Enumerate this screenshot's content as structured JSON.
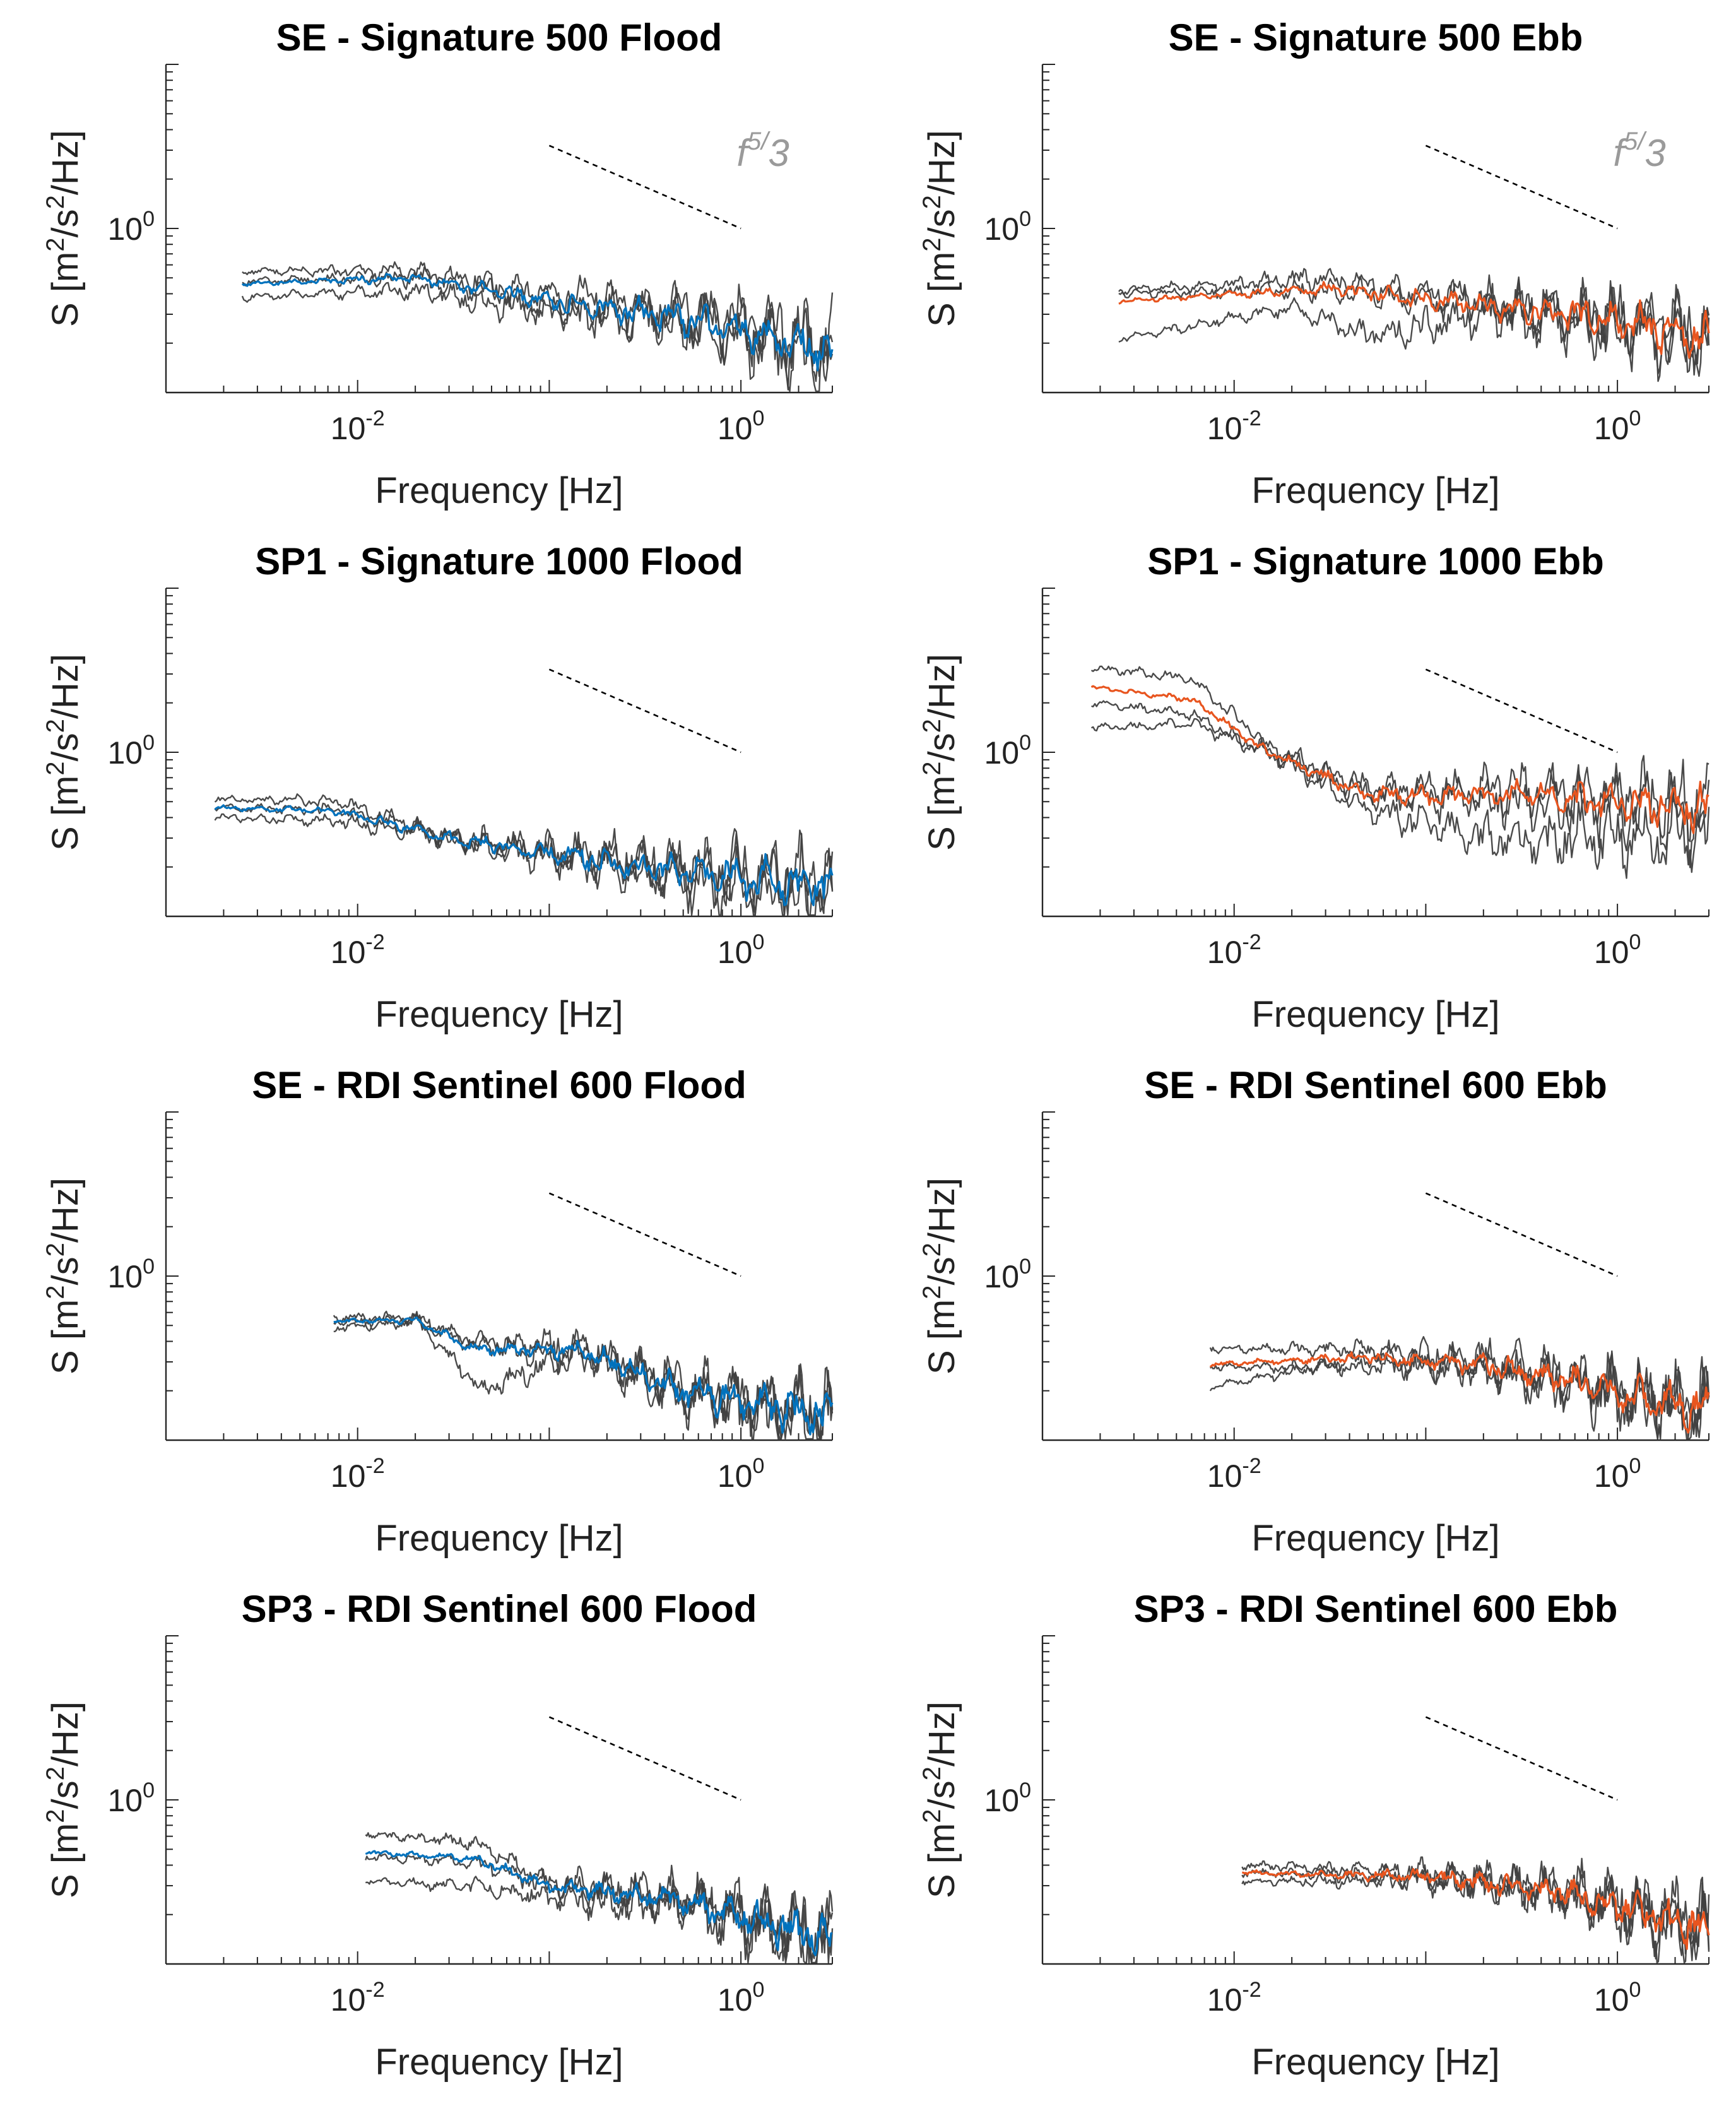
{
  "figure": {
    "common": {
      "xlabel": "Frequency [Hz]",
      "ylabel_parts": [
        "S [m",
        "2",
        "/s",
        "2",
        "/Hz]"
      ],
      "xtick_base": "10",
      "xtick_exponents": [
        "-2",
        "0"
      ],
      "xtick_values": [
        0.01,
        1
      ],
      "ytick_base": "10",
      "ytick_exponents": [
        "0"
      ],
      "ytick_values": [
        1
      ],
      "xlim": [
        0.001,
        3
      ],
      "ylim": [
        0.1,
        10
      ],
      "slope_annotation": {
        "base": "f",
        "exponent": "5/",
        "tail": "3"
      },
      "colors": {
        "flood": "#0072bd",
        "ebb": "#e8551f",
        "gray": "#404040",
        "slope": "#000000"
      }
    }
  },
  "chart_data": [
    {
      "type": "line",
      "title": "SE - Signature 500 Flood",
      "xlabel": "Frequency [Hz]",
      "ylabel": "S [m2/s2/Hz]",
      "xlim": [
        0.001,
        3
      ],
      "ylim": [
        0.1,
        10
      ],
      "color_key": "flood",
      "show_annotation": true,
      "f_start": 0.0025,
      "f_end": 3,
      "seed": 11,
      "series": [
        {
          "name": "gray-1",
          "style": "gray",
          "values_at": [
            [
              0.0025,
              0.55
            ],
            [
              0.02,
              0.55
            ],
            [
              0.1,
              0.4
            ],
            [
              0.5,
              0.32
            ],
            [
              3,
              0.2
            ]
          ]
        },
        {
          "name": "gray-2",
          "style": "gray",
          "values_at": [
            [
              0.0025,
              0.48
            ],
            [
              0.02,
              0.5
            ],
            [
              0.1,
              0.35
            ],
            [
              0.5,
              0.28
            ],
            [
              3,
              0.18
            ]
          ]
        },
        {
          "name": "gray-3",
          "style": "gray",
          "values_at": [
            [
              0.0025,
              0.38
            ],
            [
              0.02,
              0.42
            ],
            [
              0.1,
              0.3
            ],
            [
              0.5,
              0.26
            ],
            [
              3,
              0.16
            ]
          ]
        },
        {
          "name": "mean",
          "style": "main",
          "values_at": [
            [
              0.0025,
              0.46
            ],
            [
              0.02,
              0.5
            ],
            [
              0.1,
              0.36
            ],
            [
              0.5,
              0.28
            ],
            [
              3,
              0.18
            ]
          ]
        }
      ],
      "reference_line": {
        "label": "f^5/3",
        "f1": 0.1,
        "f2": 1,
        "y1": 3.2,
        "y2": 1
      }
    },
    {
      "type": "line",
      "title": "SE - Signature 500 Ebb",
      "xlabel": "Frequency [Hz]",
      "ylabel": "S [m2/s2/Hz]",
      "xlim": [
        0.001,
        3
      ],
      "ylim": [
        0.1,
        10
      ],
      "color_key": "ebb",
      "show_annotation": true,
      "f_start": 0.0025,
      "f_end": 3,
      "seed": 23,
      "series": [
        {
          "name": "gray-1",
          "style": "gray",
          "values_at": [
            [
              0.0025,
              0.42
            ],
            [
              0.03,
              0.5
            ],
            [
              0.2,
              0.36
            ],
            [
              1,
              0.3
            ],
            [
              3,
              0.22
            ]
          ]
        },
        {
          "name": "gray-2",
          "style": "gray",
          "values_at": [
            [
              0.0025,
              0.4
            ],
            [
              0.03,
              0.42
            ],
            [
              0.2,
              0.34
            ],
            [
              1,
              0.28
            ],
            [
              3,
              0.2
            ]
          ]
        },
        {
          "name": "gray-3",
          "style": "gray",
          "values_at": [
            [
              0.0025,
              0.21
            ],
            [
              0.02,
              0.33
            ],
            [
              0.05,
              0.22
            ],
            [
              0.2,
              0.3
            ],
            [
              3,
              0.2
            ]
          ]
        },
        {
          "name": "mean",
          "style": "main",
          "values_at": [
            [
              0.0025,
              0.36
            ],
            [
              0.03,
              0.43
            ],
            [
              0.2,
              0.34
            ],
            [
              1,
              0.28
            ],
            [
              3,
              0.21
            ]
          ]
        }
      ],
      "reference_line": {
        "label": "f^5/3",
        "f1": 0.1,
        "f2": 1,
        "y1": 3.2,
        "y2": 1
      }
    },
    {
      "type": "line",
      "title": "SP1 - Signature 1000 Flood",
      "xlabel": "Frequency [Hz]",
      "ylabel": "S [m2/s2/Hz]",
      "xlim": [
        0.001,
        3
      ],
      "ylim": [
        0.1,
        10
      ],
      "color_key": "flood",
      "show_annotation": false,
      "f_start": 0.0018,
      "f_end": 3,
      "seed": 37,
      "series": [
        {
          "name": "gray-1",
          "style": "gray",
          "values_at": [
            [
              0.0018,
              0.52
            ],
            [
              0.008,
              0.5
            ],
            [
              0.03,
              0.3
            ],
            [
              0.3,
              0.22
            ],
            [
              3,
              0.17
            ]
          ]
        },
        {
          "name": "gray-2",
          "style": "gray",
          "values_at": [
            [
              0.0018,
              0.46
            ],
            [
              0.008,
              0.44
            ],
            [
              0.03,
              0.3
            ],
            [
              0.3,
              0.2
            ],
            [
              3,
              0.15
            ]
          ]
        },
        {
          "name": "gray-3",
          "style": "gray",
          "values_at": [
            [
              0.0018,
              0.4
            ],
            [
              0.008,
              0.38
            ],
            [
              0.03,
              0.3
            ],
            [
              0.3,
              0.18
            ],
            [
              3,
              0.12
            ]
          ]
        },
        {
          "name": "mean",
          "style": "main",
          "values_at": [
            [
              0.0018,
              0.46
            ],
            [
              0.008,
              0.44
            ],
            [
              0.03,
              0.3
            ],
            [
              0.3,
              0.2
            ],
            [
              3,
              0.15
            ]
          ]
        }
      ],
      "reference_line": {
        "label": "f^5/3",
        "f1": 0.1,
        "f2": 1,
        "y1": 3.2,
        "y2": 1
      }
    },
    {
      "type": "line",
      "title": "SP1 - Signature 1000 Ebb",
      "xlabel": "Frequency [Hz]",
      "ylabel": "S [m2/s2/Hz]",
      "xlim": [
        0.001,
        3
      ],
      "ylim": [
        0.1,
        10
      ],
      "color_key": "ebb",
      "show_annotation": false,
      "f_start": 0.0018,
      "f_end": 3,
      "seed": 41,
      "series": [
        {
          "name": "gray-1",
          "style": "gray",
          "values_at": [
            [
              0.0018,
              3.3
            ],
            [
              0.006,
              2.8
            ],
            [
              0.015,
              1.1
            ],
            [
              0.05,
              0.6
            ],
            [
              0.3,
              0.6
            ],
            [
              3,
              0.5
            ]
          ]
        },
        {
          "name": "gray-2",
          "style": "gray",
          "values_at": [
            [
              0.0018,
              2.0
            ],
            [
              0.006,
              1.7
            ],
            [
              0.015,
              1.0
            ],
            [
              0.05,
              0.55
            ],
            [
              0.3,
              0.5
            ],
            [
              3,
              0.4
            ]
          ]
        },
        {
          "name": "gray-3",
          "style": "gray",
          "values_at": [
            [
              0.0018,
              1.4
            ],
            [
              0.006,
              1.5
            ],
            [
              0.015,
              1.0
            ],
            [
              0.05,
              0.45
            ],
            [
              0.2,
              0.3
            ],
            [
              3,
              0.3
            ]
          ]
        },
        {
          "name": "mean",
          "style": "main",
          "values_at": [
            [
              0.0018,
              2.5
            ],
            [
              0.006,
              2.1
            ],
            [
              0.015,
              1.0
            ],
            [
              0.05,
              0.55
            ],
            [
              0.3,
              0.55
            ],
            [
              3,
              0.45
            ]
          ]
        }
      ],
      "reference_line": {
        "label": "f^5/3",
        "f1": 0.1,
        "f2": 1,
        "y1": 3.2,
        "y2": 1
      }
    },
    {
      "type": "line",
      "title": "SE - RDI Sentinel 600 Flood",
      "xlabel": "Frequency [Hz]",
      "ylabel": "S [m2/s2/Hz]",
      "xlim": [
        0.001,
        3
      ],
      "ylim": [
        0.1,
        10
      ],
      "color_key": "flood",
      "show_annotation": false,
      "f_start": 0.0075,
      "f_end": 3,
      "seed": 53,
      "series": [
        {
          "name": "gray-1",
          "style": "gray",
          "values_at": [
            [
              0.0075,
              0.56
            ],
            [
              0.02,
              0.56
            ],
            [
              0.04,
              0.4
            ],
            [
              0.15,
              0.38
            ],
            [
              0.5,
              0.22
            ],
            [
              3,
              0.15
            ]
          ]
        },
        {
          "name": "gray-2",
          "style": "gray",
          "values_at": [
            [
              0.0075,
              0.52
            ],
            [
              0.02,
              0.54
            ],
            [
              0.045,
              0.2
            ],
            [
              0.15,
              0.35
            ],
            [
              0.5,
              0.2
            ],
            [
              3,
              0.14
            ]
          ]
        },
        {
          "name": "gray-3",
          "style": "gray",
          "values_at": [
            [
              0.0075,
              0.48
            ],
            [
              0.02,
              0.52
            ],
            [
              0.04,
              0.38
            ],
            [
              0.15,
              0.32
            ],
            [
              0.5,
              0.18
            ],
            [
              3,
              0.12
            ]
          ]
        },
        {
          "name": "mean",
          "style": "main",
          "values_at": [
            [
              0.0075,
              0.53
            ],
            [
              0.02,
              0.54
            ],
            [
              0.04,
              0.36
            ],
            [
              0.15,
              0.35
            ],
            [
              0.5,
              0.2
            ],
            [
              3,
              0.14
            ]
          ]
        }
      ],
      "reference_line": {
        "label": "f^5/3",
        "f1": 0.1,
        "f2": 1,
        "y1": 3.2,
        "y2": 1
      }
    },
    {
      "type": "line",
      "title": "SE - RDI Sentinel 600 Ebb",
      "xlabel": "Frequency [Hz]",
      "ylabel": "S [m2/s2/Hz]",
      "xlim": [
        0.001,
        3
      ],
      "ylim": [
        0.1,
        10
      ],
      "color_key": "ebb",
      "show_annotation": false,
      "f_start": 0.0075,
      "f_end": 3,
      "seed": 67,
      "series": [
        {
          "name": "gray-1",
          "style": "gray",
          "values_at": [
            [
              0.0075,
              0.36
            ],
            [
              0.05,
              0.36
            ],
            [
              0.2,
              0.32
            ],
            [
              1,
              0.22
            ],
            [
              3,
              0.17
            ]
          ]
        },
        {
          "name": "gray-2",
          "style": "gray",
          "values_at": [
            [
              0.0075,
              0.28
            ],
            [
              0.05,
              0.28
            ],
            [
              0.2,
              0.28
            ],
            [
              1,
              0.2
            ],
            [
              3,
              0.15
            ]
          ]
        },
        {
          "name": "gray-3",
          "style": "gray",
          "values_at": [
            [
              0.0075,
              0.21
            ],
            [
              0.05,
              0.32
            ],
            [
              0.2,
              0.26
            ],
            [
              1,
              0.18
            ],
            [
              3,
              0.13
            ]
          ]
        },
        {
          "name": "mean",
          "style": "main",
          "values_at": [
            [
              0.0075,
              0.29
            ],
            [
              0.05,
              0.32
            ],
            [
              0.2,
              0.29
            ],
            [
              1,
              0.2
            ],
            [
              3,
              0.15
            ]
          ]
        }
      ],
      "reference_line": {
        "label": "f^5/3",
        "f1": 0.1,
        "f2": 1,
        "y1": 3.2,
        "y2": 1
      }
    },
    {
      "type": "line",
      "title": "SP3 - RDI Sentinel 600 Flood",
      "xlabel": "Frequency [Hz]",
      "ylabel": "S [m2/s2/Hz]",
      "xlim": [
        0.001,
        3
      ],
      "ylim": [
        0.1,
        10
      ],
      "color_key": "flood",
      "show_annotation": false,
      "f_start": 0.011,
      "f_end": 3,
      "seed": 79,
      "series": [
        {
          "name": "gray-1",
          "style": "gray",
          "values_at": [
            [
              0.011,
              0.62
            ],
            [
              0.04,
              0.55
            ],
            [
              0.1,
              0.32
            ],
            [
              0.5,
              0.26
            ],
            [
              3,
              0.15
            ]
          ]
        },
        {
          "name": "gray-2",
          "style": "gray",
          "values_at": [
            [
              0.011,
              0.45
            ],
            [
              0.04,
              0.42
            ],
            [
              0.1,
              0.3
            ],
            [
              0.5,
              0.24
            ],
            [
              3,
              0.14
            ]
          ]
        },
        {
          "name": "gray-3",
          "style": "gray",
          "values_at": [
            [
              0.011,
              0.32
            ],
            [
              0.04,
              0.3
            ],
            [
              0.1,
              0.25
            ],
            [
              0.5,
              0.22
            ],
            [
              3,
              0.12
            ]
          ]
        },
        {
          "name": "mean",
          "style": "main",
          "values_at": [
            [
              0.011,
              0.48
            ],
            [
              0.04,
              0.44
            ],
            [
              0.1,
              0.3
            ],
            [
              0.5,
              0.24
            ],
            [
              3,
              0.14
            ]
          ]
        }
      ],
      "reference_line": {
        "label": "f^5/3",
        "f1": 0.1,
        "f2": 1,
        "y1": 3.2,
        "y2": 1
      }
    },
    {
      "type": "line",
      "title": "SP3 - RDI Sentinel 600 Ebb",
      "xlabel": "Frequency [Hz]",
      "ylabel": "S [m2/s2/Hz]",
      "xlim": [
        0.001,
        3
      ],
      "ylim": [
        0.1,
        10
      ],
      "color_key": "ebb",
      "show_annotation": false,
      "f_start": 0.011,
      "f_end": 3,
      "seed": 83,
      "series": [
        {
          "name": "gray-1",
          "style": "gray",
          "values_at": [
            [
              0.011,
              0.4
            ],
            [
              0.1,
              0.36
            ],
            [
              0.5,
              0.3
            ],
            [
              3,
              0.18
            ]
          ]
        },
        {
          "name": "gray-2",
          "style": "gray",
          "values_at": [
            [
              0.011,
              0.36
            ],
            [
              0.1,
              0.34
            ],
            [
              0.5,
              0.28
            ],
            [
              3,
              0.16
            ]
          ]
        },
        {
          "name": "gray-3",
          "style": "gray",
          "values_at": [
            [
              0.011,
              0.32
            ],
            [
              0.1,
              0.32
            ],
            [
              0.5,
              0.26
            ],
            [
              3,
              0.15
            ]
          ]
        },
        {
          "name": "mean",
          "style": "main",
          "values_at": [
            [
              0.011,
              0.36
            ],
            [
              0.1,
              0.34
            ],
            [
              0.5,
              0.28
            ],
            [
              3,
              0.16
            ]
          ]
        }
      ],
      "reference_line": {
        "label": "f^5/3",
        "f1": 0.1,
        "f2": 1,
        "y1": 3.2,
        "y2": 1
      }
    }
  ]
}
